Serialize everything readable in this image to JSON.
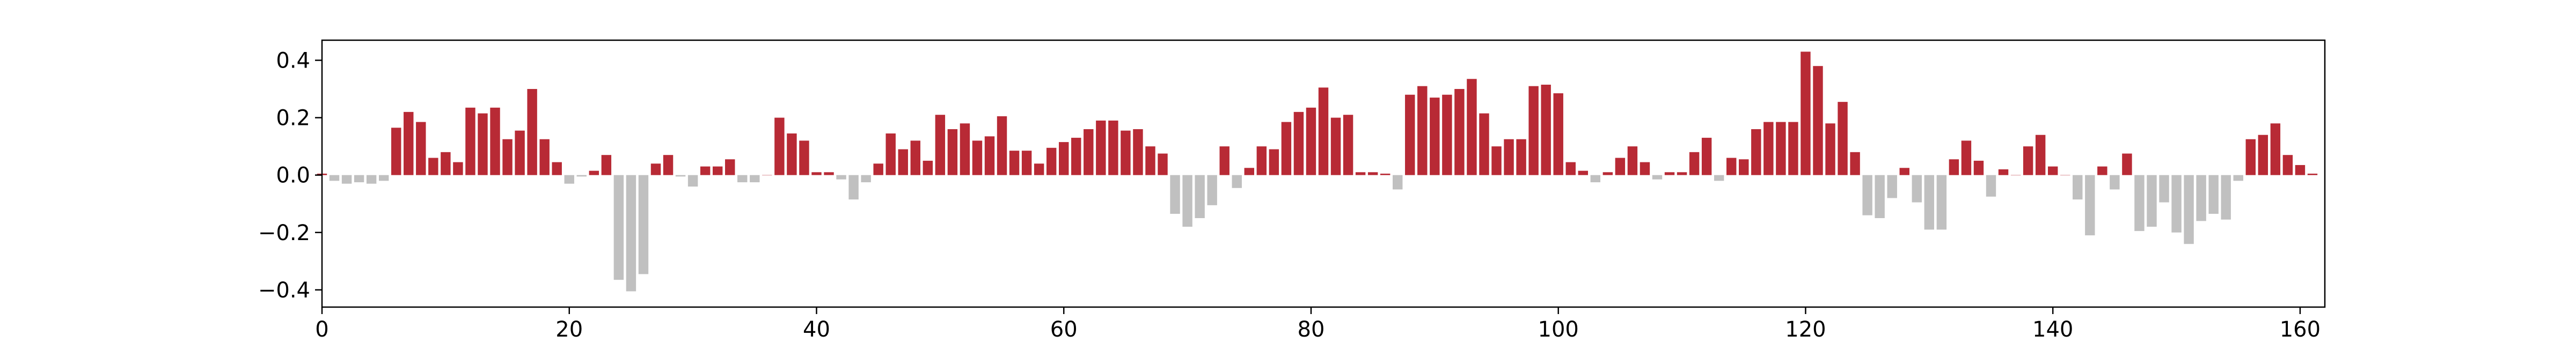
{
  "chart_data": {
    "type": "bar",
    "title": "",
    "xlabel": "",
    "ylabel": "",
    "xlim": [
      0,
      162
    ],
    "ylim": [
      -0.46,
      0.47
    ],
    "x_ticks": [
      0,
      20,
      40,
      60,
      80,
      100,
      120,
      140,
      160
    ],
    "y_ticks": [
      -0.4,
      -0.2,
      0.0,
      0.2,
      0.4
    ],
    "x_tick_labels": [
      "0",
      "20",
      "40",
      "60",
      "80",
      "100",
      "120",
      "140",
      "160"
    ],
    "y_tick_labels": [
      "−0.4",
      "−0.2",
      "0.0",
      "0.2",
      "0.4"
    ],
    "grid": false,
    "legend": "none",
    "colors": {
      "positive": "#b82a35",
      "negative": "#c0c0c0"
    },
    "x": [
      0,
      1,
      2,
      3,
      4,
      5,
      6,
      7,
      8,
      9,
      10,
      11,
      12,
      13,
      14,
      15,
      16,
      17,
      18,
      19,
      20,
      21,
      22,
      23,
      24,
      25,
      26,
      27,
      28,
      29,
      30,
      31,
      32,
      33,
      34,
      35,
      36,
      37,
      38,
      39,
      40,
      41,
      42,
      43,
      44,
      45,
      46,
      47,
      48,
      49,
      50,
      51,
      52,
      53,
      54,
      55,
      56,
      57,
      58,
      59,
      60,
      61,
      62,
      63,
      64,
      65,
      66,
      67,
      68,
      69,
      70,
      71,
      72,
      73,
      74,
      75,
      76,
      77,
      78,
      79,
      80,
      81,
      82,
      83,
      84,
      85,
      86,
      87,
      88,
      89,
      90,
      91,
      92,
      93,
      94,
      95,
      96,
      97,
      98,
      99,
      100,
      101,
      102,
      103,
      104,
      105,
      106,
      107,
      108,
      109,
      110,
      111,
      112,
      113,
      114,
      115,
      116,
      117,
      118,
      119,
      120,
      121,
      122,
      123,
      124,
      125,
      126,
      127,
      128,
      129,
      130,
      131,
      132,
      133,
      134,
      135,
      136,
      137,
      138,
      139,
      140,
      141,
      142,
      143,
      144,
      145,
      146,
      147,
      148,
      149,
      150,
      151,
      152,
      153,
      154,
      155,
      156,
      157,
      158,
      159,
      160,
      161
    ],
    "values": [
      0.005,
      -0.02,
      -0.03,
      -0.025,
      -0.03,
      -0.02,
      0.165,
      0.22,
      0.185,
      0.06,
      0.08,
      0.045,
      0.235,
      0.215,
      0.235,
      0.125,
      0.155,
      0.3,
      0.125,
      0.045,
      -0.03,
      -0.005,
      0.015,
      0.07,
      -0.365,
      -0.405,
      -0.345,
      0.04,
      0.07,
      -0.005,
      -0.04,
      0.03,
      0.03,
      0.055,
      -0.025,
      -0.025,
      0.0,
      0.2,
      0.145,
      0.12,
      0.01,
      0.01,
      -0.015,
      -0.085,
      -0.025,
      0.04,
      0.145,
      0.09,
      0.12,
      0.05,
      0.21,
      0.16,
      0.18,
      0.12,
      0.135,
      0.205,
      0.085,
      0.085,
      0.04,
      0.095,
      0.115,
      0.13,
      0.16,
      0.19,
      0.19,
      0.155,
      0.16,
      0.1,
      0.075,
      -0.135,
      -0.18,
      -0.15,
      -0.105,
      0.1,
      -0.045,
      0.025,
      0.1,
      0.09,
      0.185,
      0.22,
      0.235,
      0.305,
      0.2,
      0.21,
      0.01,
      0.01,
      0.005,
      -0.05,
      0.28,
      0.31,
      0.27,
      0.28,
      0.3,
      0.335,
      0.215,
      0.1,
      0.125,
      0.125,
      0.31,
      0.315,
      0.285,
      0.045,
      0.015,
      -0.025,
      0.01,
      0.06,
      0.1,
      0.045,
      -0.015,
      0.01,
      0.01,
      0.08,
      0.13,
      -0.02,
      0.06,
      0.055,
      0.16,
      0.185,
      0.185,
      0.185,
      0.43,
      0.38,
      0.18,
      0.255,
      0.08,
      -0.14,
      -0.15,
      -0.08,
      0.025,
      -0.095,
      -0.19,
      -0.19,
      0.055,
      0.12,
      0.05,
      -0.075,
      0.02,
      0.0,
      0.1,
      0.14,
      0.03,
      0.0,
      -0.085,
      -0.21,
      0.03,
      -0.05,
      0.075,
      -0.195,
      -0.18,
      -0.095,
      -0.2,
      -0.24,
      -0.16,
      -0.135,
      -0.155,
      -0.02,
      0.125,
      0.14,
      0.18,
      0.07,
      0.035,
      0.005
    ]
  }
}
